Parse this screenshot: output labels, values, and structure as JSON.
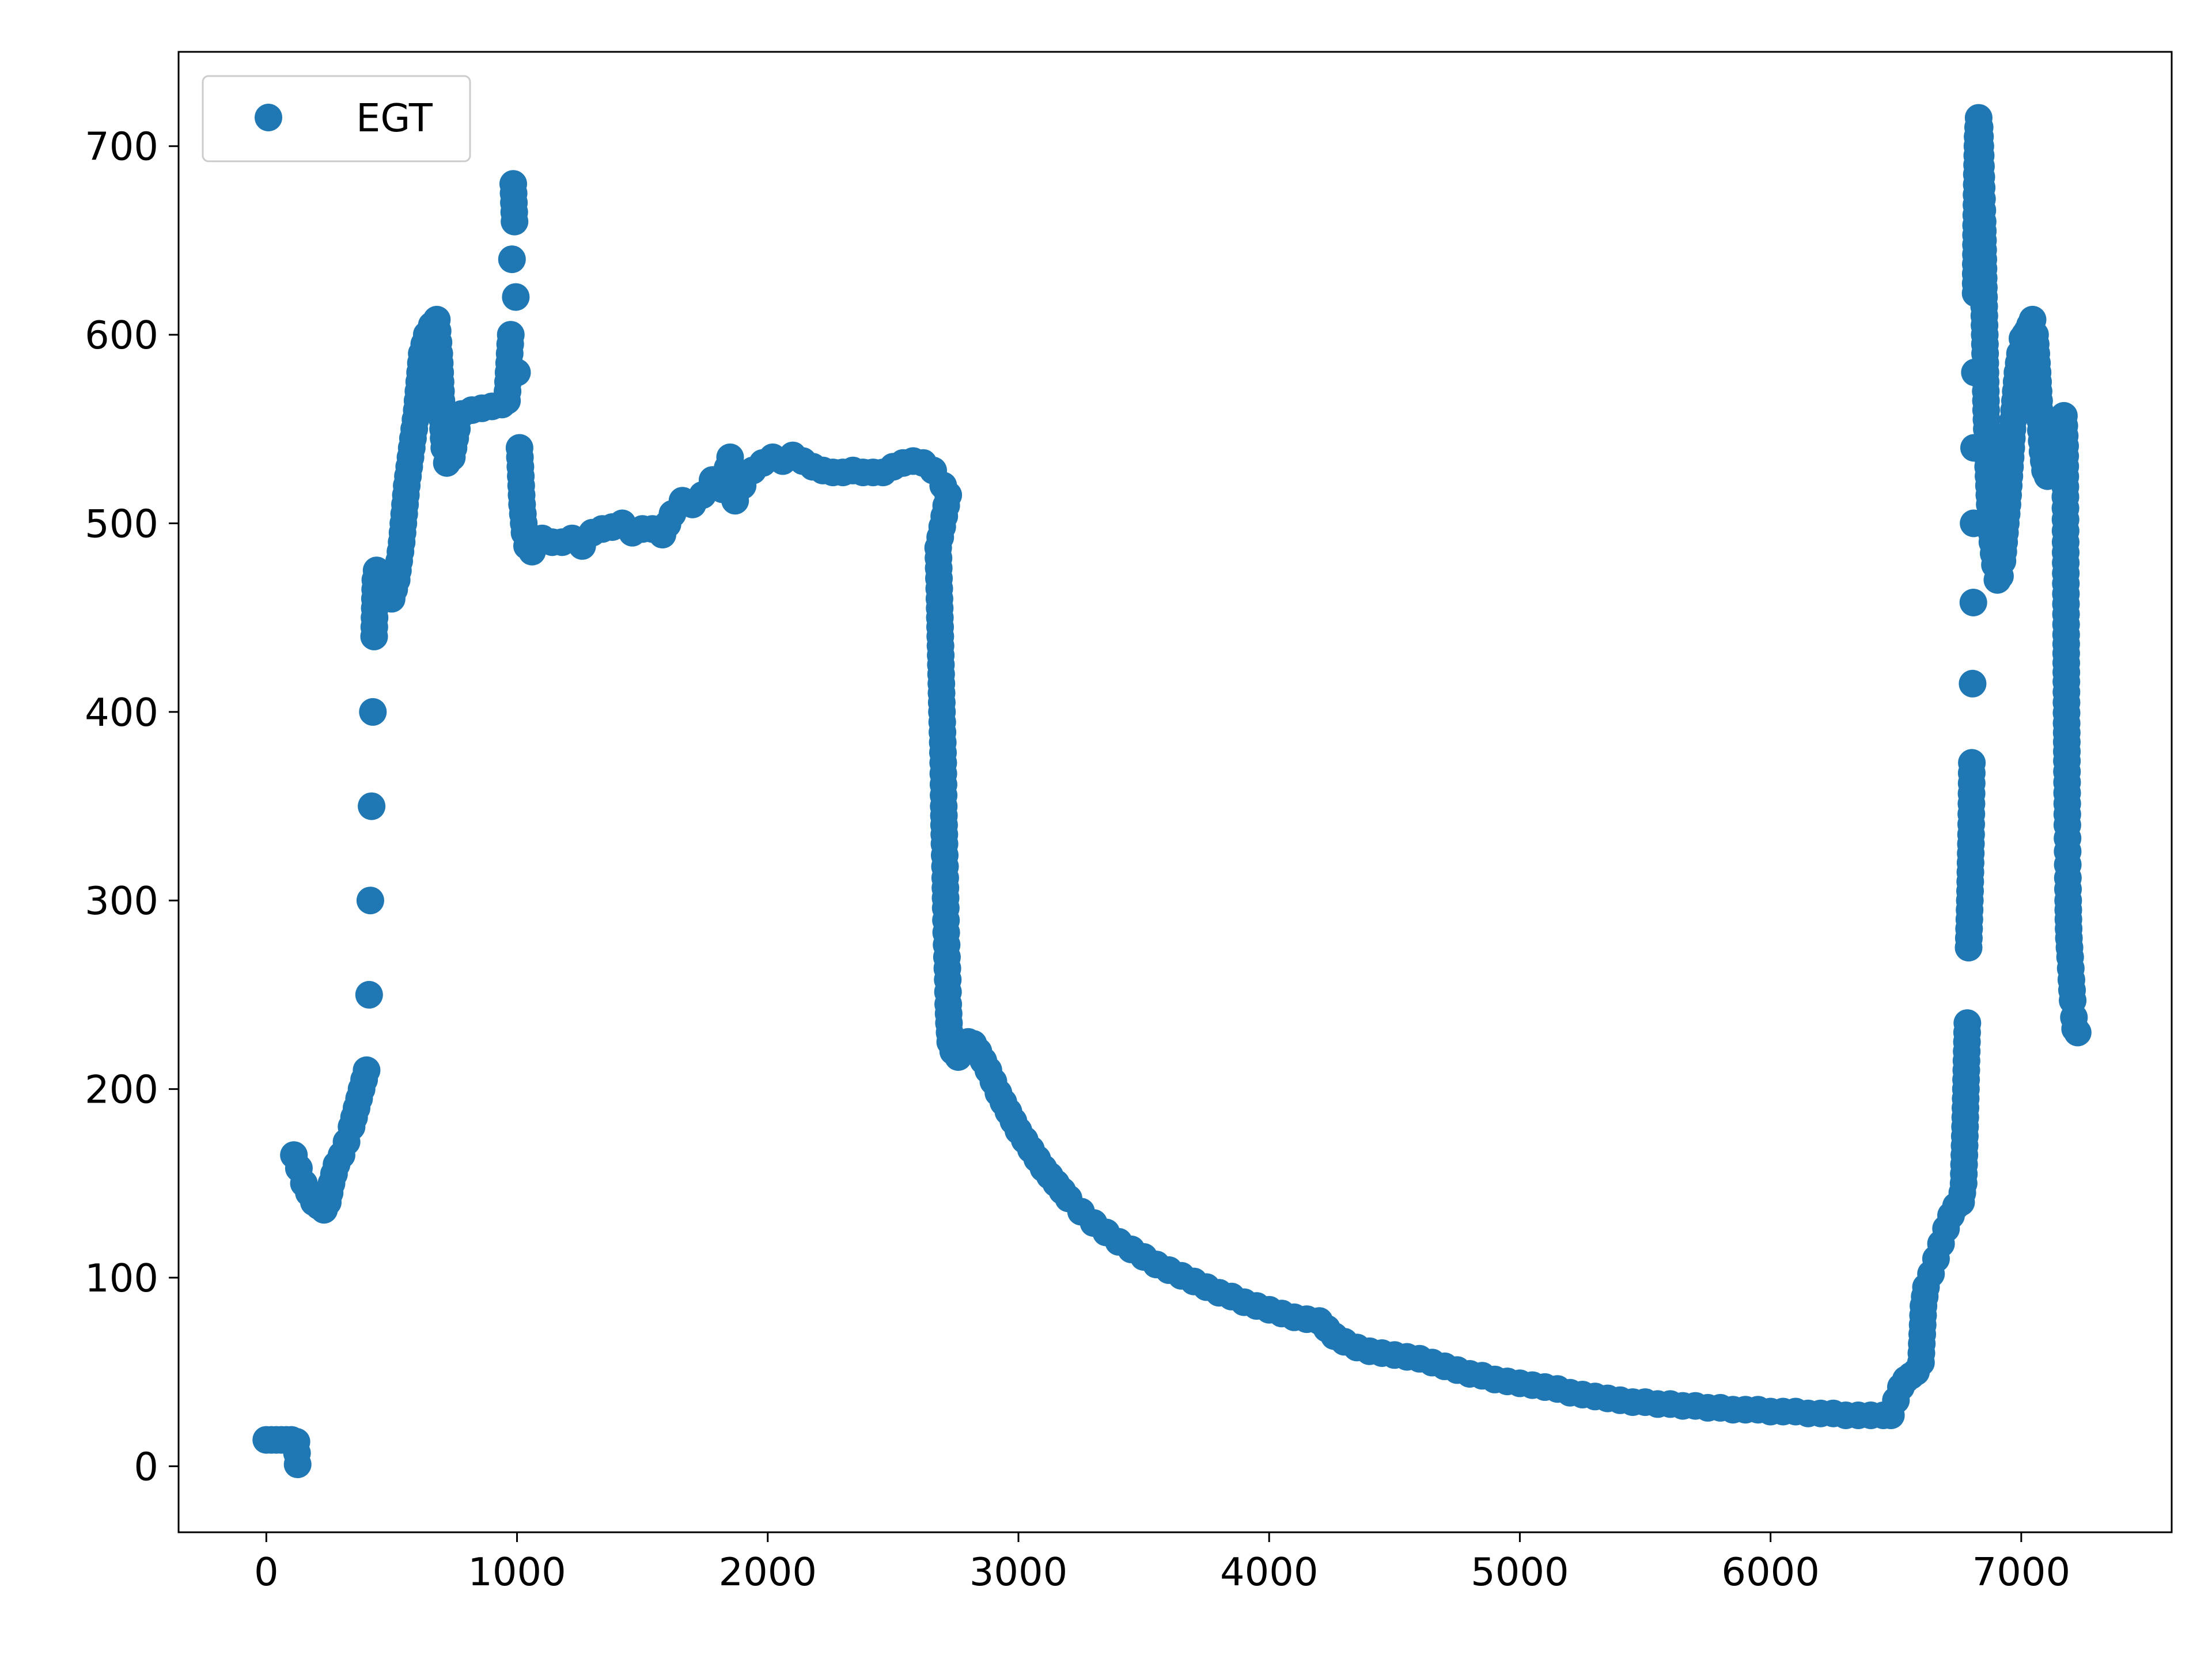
{
  "chart_data": {
    "type": "scatter",
    "title": "",
    "xlabel": "",
    "ylabel": "",
    "xlim": [
      -350,
      7600
    ],
    "ylim": [
      -35,
      750
    ],
    "xticks": [
      0,
      1000,
      2000,
      3000,
      4000,
      5000,
      6000,
      7000
    ],
    "yticks": [
      0,
      100,
      200,
      300,
      400,
      500,
      600,
      700
    ],
    "grid": false,
    "legend_position": "top-left",
    "series": [
      {
        "name": "EGT",
        "color": "#1f77b4",
        "marker": "circle",
        "points": [
          [
            0,
            14
          ],
          [
            20,
            14
          ],
          [
            40,
            14
          ],
          [
            60,
            14
          ],
          [
            80,
            14
          ],
          [
            100,
            14
          ],
          [
            120,
            13
          ],
          [
            125,
            1
          ],
          [
            110,
            165
          ],
          [
            130,
            158
          ],
          [
            150,
            150
          ],
          [
            170,
            145
          ],
          [
            190,
            140
          ],
          [
            210,
            138
          ],
          [
            230,
            136
          ],
          [
            245,
            140
          ],
          [
            260,
            150
          ],
          [
            280,
            160
          ],
          [
            300,
            165
          ],
          [
            320,
            172
          ],
          [
            340,
            180
          ],
          [
            360,
            190
          ],
          [
            380,
            200
          ],
          [
            400,
            210
          ],
          [
            410,
            250
          ],
          [
            415,
            300
          ],
          [
            420,
            350
          ],
          [
            425,
            400
          ],
          [
            430,
            440
          ],
          [
            435,
            470
          ],
          [
            440,
            475
          ],
          [
            460,
            470
          ],
          [
            480,
            462
          ],
          [
            500,
            460
          ],
          [
            520,
            470
          ],
          [
            540,
            490
          ],
          [
            560,
            520
          ],
          [
            580,
            540
          ],
          [
            600,
            560
          ],
          [
            620,
            590
          ],
          [
            640,
            600
          ],
          [
            660,
            605
          ],
          [
            680,
            608
          ],
          [
            690,
            590
          ],
          [
            700,
            560
          ],
          [
            710,
            540
          ],
          [
            720,
            532
          ],
          [
            740,
            535
          ],
          [
            760,
            550
          ],
          [
            780,
            558
          ],
          [
            820,
            560
          ],
          [
            860,
            561
          ],
          [
            900,
            562
          ],
          [
            940,
            563
          ],
          [
            960,
            565
          ],
          [
            975,
            600
          ],
          [
            980,
            640
          ],
          [
            985,
            680
          ],
          [
            990,
            660
          ],
          [
            995,
            620
          ],
          [
            1000,
            580
          ],
          [
            1010,
            540
          ],
          [
            1020,
            510
          ],
          [
            1030,
            495
          ],
          [
            1040,
            488
          ],
          [
            1060,
            485
          ],
          [
            1080,
            490
          ],
          [
            1100,
            492
          ],
          [
            1140,
            490
          ],
          [
            1180,
            490
          ],
          [
            1220,
            492
          ],
          [
            1260,
            488
          ],
          [
            1300,
            495
          ],
          [
            1340,
            497
          ],
          [
            1380,
            498
          ],
          [
            1420,
            500
          ],
          [
            1460,
            495
          ],
          [
            1500,
            497
          ],
          [
            1540,
            497
          ],
          [
            1580,
            494
          ],
          [
            1620,
            505
          ],
          [
            1660,
            512
          ],
          [
            1700,
            510
          ],
          [
            1740,
            515
          ],
          [
            1780,
            523
          ],
          [
            1820,
            518
          ],
          [
            1850,
            535
          ],
          [
            1870,
            512
          ],
          [
            1900,
            520
          ],
          [
            1940,
            528
          ],
          [
            1980,
            532
          ],
          [
            2020,
            535
          ],
          [
            2060,
            533
          ],
          [
            2100,
            536
          ],
          [
            2140,
            533
          ],
          [
            2180,
            530
          ],
          [
            2220,
            528
          ],
          [
            2260,
            527
          ],
          [
            2300,
            527
          ],
          [
            2340,
            528
          ],
          [
            2380,
            527
          ],
          [
            2420,
            527
          ],
          [
            2460,
            527
          ],
          [
            2500,
            530
          ],
          [
            2540,
            532
          ],
          [
            2580,
            533
          ],
          [
            2620,
            532
          ],
          [
            2660,
            528
          ],
          [
            2700,
            520
          ],
          [
            2720,
            515
          ],
          [
            2680,
            487
          ],
          [
            2685,
            460
          ],
          [
            2690,
            430
          ],
          [
            2695,
            400
          ],
          [
            2700,
            373
          ],
          [
            2702,
            350
          ],
          [
            2705,
            330
          ],
          [
            2708,
            312
          ],
          [
            2710,
            296
          ],
          [
            2712,
            283
          ],
          [
            2715,
            270
          ],
          [
            2718,
            258
          ],
          [
            2720,
            245
          ],
          [
            2723,
            235
          ],
          [
            2728,
            225
          ],
          [
            2740,
            220
          ],
          [
            2760,
            217
          ],
          [
            2780,
            222
          ],
          [
            2800,
            225
          ],
          [
            2820,
            224
          ],
          [
            2840,
            220
          ],
          [
            2880,
            210
          ],
          [
            2920,
            198
          ],
          [
            2960,
            188
          ],
          [
            3000,
            178
          ],
          [
            3050,
            168
          ],
          [
            3100,
            158
          ],
          [
            3150,
            150
          ],
          [
            3200,
            142
          ],
          [
            3250,
            135
          ],
          [
            3300,
            129
          ],
          [
            3350,
            124
          ],
          [
            3400,
            119
          ],
          [
            3450,
            115
          ],
          [
            3500,
            111
          ],
          [
            3550,
            107
          ],
          [
            3600,
            104
          ],
          [
            3650,
            101
          ],
          [
            3700,
            98
          ],
          [
            3750,
            95
          ],
          [
            3800,
            92
          ],
          [
            3850,
            90
          ],
          [
            3900,
            87
          ],
          [
            3950,
            85
          ],
          [
            4000,
            83
          ],
          [
            4050,
            81
          ],
          [
            4100,
            79
          ],
          [
            4150,
            78
          ],
          [
            4200,
            77
          ],
          [
            4230,
            73
          ],
          [
            4260,
            69
          ],
          [
            4300,
            66
          ],
          [
            4350,
            63
          ],
          [
            4400,
            61
          ],
          [
            4450,
            60
          ],
          [
            4500,
            59
          ],
          [
            4550,
            58
          ],
          [
            4600,
            57
          ],
          [
            4650,
            55
          ],
          [
            4700,
            53
          ],
          [
            4750,
            51
          ],
          [
            4800,
            49
          ],
          [
            4850,
            48
          ],
          [
            4900,
            46
          ],
          [
            4950,
            45
          ],
          [
            5000,
            44
          ],
          [
            5050,
            43
          ],
          [
            5100,
            42
          ],
          [
            5150,
            41
          ],
          [
            5200,
            39
          ],
          [
            5250,
            38
          ],
          [
            5300,
            37
          ],
          [
            5350,
            36
          ],
          [
            5400,
            35
          ],
          [
            5450,
            34
          ],
          [
            5500,
            34
          ],
          [
            5550,
            33
          ],
          [
            5600,
            33
          ],
          [
            5650,
            32
          ],
          [
            5700,
            32
          ],
          [
            5750,
            31
          ],
          [
            5800,
            31
          ],
          [
            5850,
            30
          ],
          [
            5900,
            30
          ],
          [
            5950,
            30
          ],
          [
            6000,
            29
          ],
          [
            6050,
            29
          ],
          [
            6100,
            29
          ],
          [
            6150,
            28
          ],
          [
            6200,
            28
          ],
          [
            6250,
            28
          ],
          [
            6300,
            27
          ],
          [
            6350,
            27
          ],
          [
            6400,
            27
          ],
          [
            6450,
            27
          ],
          [
            6480,
            27
          ],
          [
            6500,
            35
          ],
          [
            6520,
            42
          ],
          [
            6540,
            46
          ],
          [
            6560,
            48
          ],
          [
            6580,
            50
          ],
          [
            6600,
            55
          ],
          [
            6605,
            70
          ],
          [
            6610,
            85
          ],
          [
            6620,
            95
          ],
          [
            6640,
            102
          ],
          [
            6660,
            110
          ],
          [
            6680,
            118
          ],
          [
            6700,
            126
          ],
          [
            6720,
            133
          ],
          [
            6740,
            138
          ],
          [
            6760,
            140
          ],
          [
            6770,
            150
          ],
          [
            6775,
            175
          ],
          [
            6780,
            205
          ],
          [
            6785,
            235
          ],
          [
            6790,
            275
          ],
          [
            6795,
            300
          ],
          [
            6800,
            335
          ],
          [
            6803,
            373
          ],
          [
            6806,
            415
          ],
          [
            6809,
            458
          ],
          [
            6810,
            500
          ],
          [
            6812,
            540
          ],
          [
            6815,
            580
          ],
          [
            6818,
            622
          ],
          [
            6820,
            658
          ],
          [
            6823,
            685
          ],
          [
            6826,
            705
          ],
          [
            6830,
            715
          ],
          [
            6834,
            710
          ],
          [
            6838,
            695
          ],
          [
            6842,
            678
          ],
          [
            6846,
            660
          ],
          [
            6850,
            630
          ],
          [
            6855,
            595
          ],
          [
            6860,
            560
          ],
          [
            6868,
            530
          ],
          [
            6876,
            505
          ],
          [
            6885,
            490
          ],
          [
            6895,
            478
          ],
          [
            6905,
            470
          ],
          [
            6915,
            472
          ],
          [
            6925,
            480
          ],
          [
            6935,
            495
          ],
          [
            6945,
            510
          ],
          [
            6955,
            530
          ],
          [
            6965,
            550
          ],
          [
            6975,
            565
          ],
          [
            6985,
            580
          ],
          [
            6995,
            590
          ],
          [
            7005,
            598
          ],
          [
            7015,
            600
          ],
          [
            7025,
            602
          ],
          [
            7035,
            605
          ],
          [
            7045,
            608
          ],
          [
            7055,
            600
          ],
          [
            7065,
            580
          ],
          [
            7075,
            555
          ],
          [
            7085,
            538
          ],
          [
            7095,
            528
          ],
          [
            7105,
            525
          ],
          [
            7115,
            530
          ],
          [
            7125,
            540
          ],
          [
            7140,
            548
          ],
          [
            7155,
            552
          ],
          [
            7170,
            557
          ],
          [
            7175,
            541
          ],
          [
            7176,
            514
          ],
          [
            7177,
            490
          ],
          [
            7178,
            468
          ],
          [
            7179,
            441
          ],
          [
            7180,
            416
          ],
          [
            7181,
            394
          ],
          [
            7182,
            374
          ],
          [
            7183,
            357
          ],
          [
            7184,
            340
          ],
          [
            7185,
            326
          ],
          [
            7186,
            312
          ],
          [
            7187,
            300
          ],
          [
            7188,
            290
          ],
          [
            7190,
            280
          ],
          [
            7195,
            270
          ],
          [
            7200,
            258
          ],
          [
            7205,
            247
          ],
          [
            7210,
            238
          ],
          [
            7215,
            232
          ],
          [
            7225,
            230
          ]
        ]
      }
    ]
  }
}
